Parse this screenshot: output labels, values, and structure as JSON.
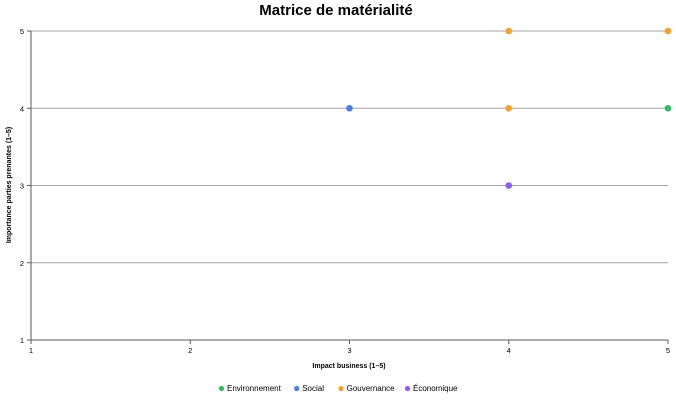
{
  "chart_data": {
    "type": "scatter",
    "title": "Matrice de matérialité",
    "xlabel": "Impact business (1–5)",
    "ylabel": "Importance parties prenantes (1–5)",
    "xlim": [
      1,
      5
    ],
    "ylim": [
      1,
      5
    ],
    "xticks": [
      "1",
      "2",
      "3",
      "4",
      "5"
    ],
    "yticks": [
      "1",
      "2",
      "3",
      "4",
      "5"
    ],
    "grid": "horizontal",
    "legend_position": "bottom",
    "series": [
      {
        "name": "Environnement",
        "color": "#2fbf5f",
        "points": [
          {
            "x": 5,
            "y": 4
          }
        ]
      },
      {
        "name": "Social",
        "color": "#4a7fe8",
        "points": [
          {
            "x": 3,
            "y": 4
          }
        ]
      },
      {
        "name": "Gouvernance",
        "color": "#f0a22e",
        "points": [
          {
            "x": 4,
            "y": 5
          },
          {
            "x": 5,
            "y": 5
          },
          {
            "x": 4,
            "y": 4
          }
        ]
      },
      {
        "name": "Économique",
        "color": "#8b5cf6",
        "points": [
          {
            "x": 4,
            "y": 3
          }
        ]
      }
    ]
  }
}
